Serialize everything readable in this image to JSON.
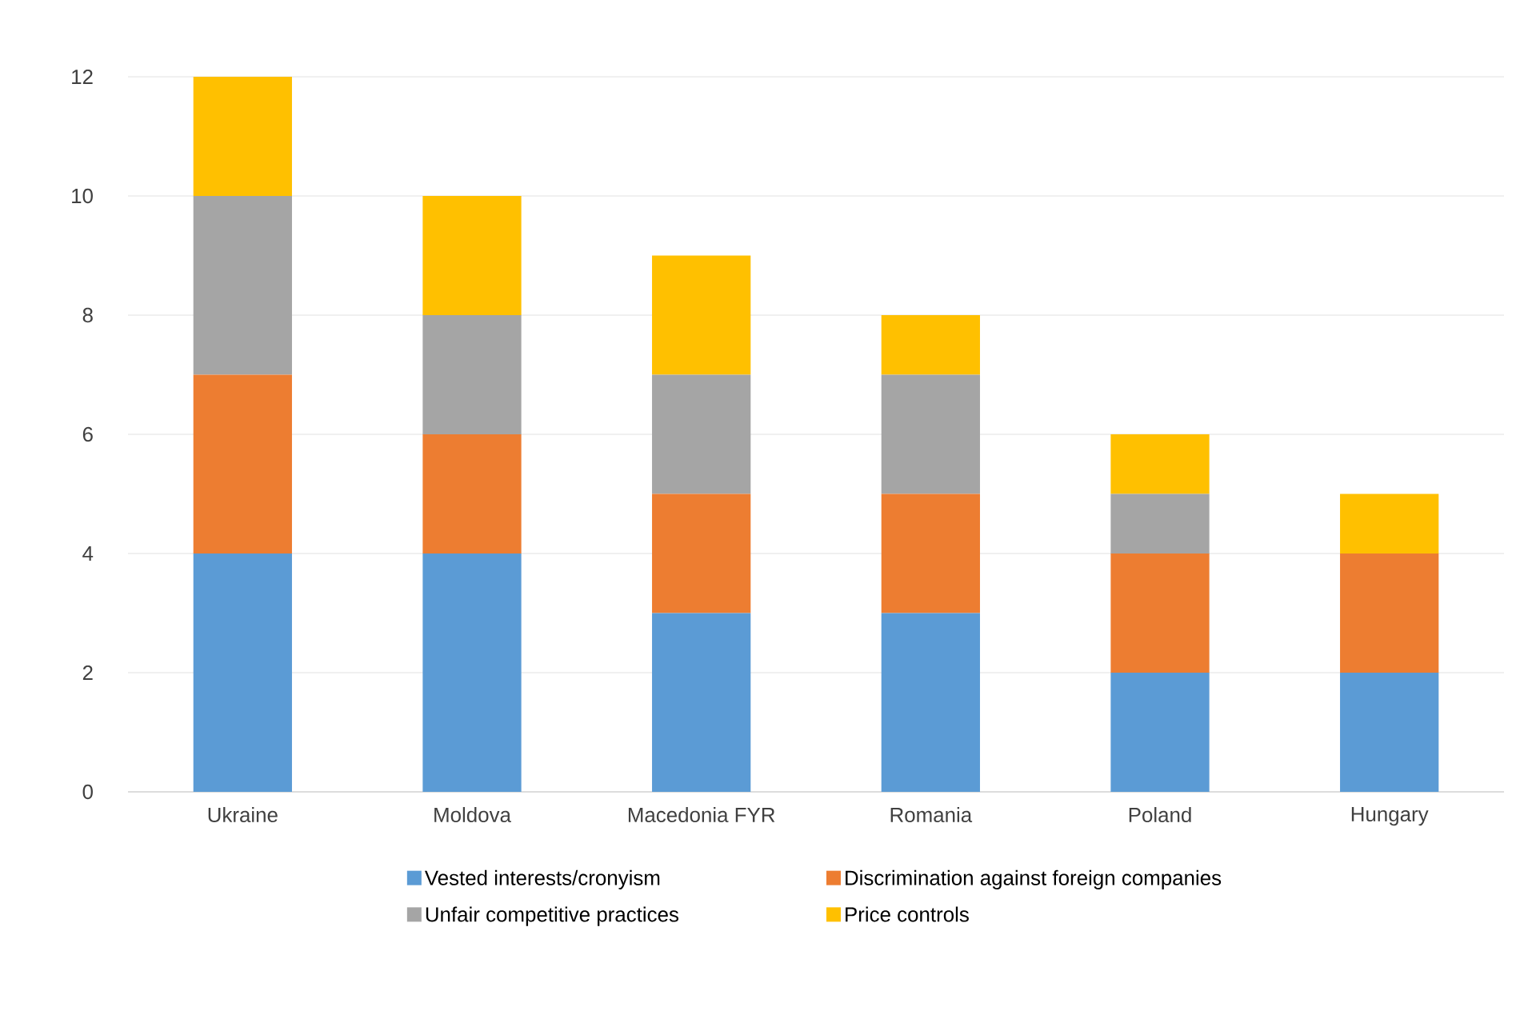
{
  "chart_data": {
    "type": "bar",
    "stacked": true,
    "categories": [
      "Ukraine",
      "Moldova",
      "Macedonia FYR",
      "Romania",
      "Poland",
      "Hungary"
    ],
    "series": [
      {
        "name": "Vested interests/cronyism",
        "color": "#5b9bd5",
        "values": [
          4,
          4,
          3,
          3,
          2,
          2
        ]
      },
      {
        "name": "Discrimination against foreign companies",
        "color": "#ed7d31",
        "values": [
          3,
          2,
          2,
          2,
          2,
          2
        ]
      },
      {
        "name": "Unfair competitive practices",
        "color": "#a5a5a5",
        "values": [
          3,
          2,
          2,
          2,
          1,
          0
        ]
      },
      {
        "name": "Price controls",
        "color": "#ffc000",
        "values": [
          2,
          2,
          2,
          1,
          1,
          1
        ]
      }
    ],
    "ylim": [
      0,
      12
    ],
    "yticks": [
      0,
      2,
      4,
      6,
      8,
      10,
      12
    ],
    "grid": "y",
    "legend": "bottom"
  }
}
